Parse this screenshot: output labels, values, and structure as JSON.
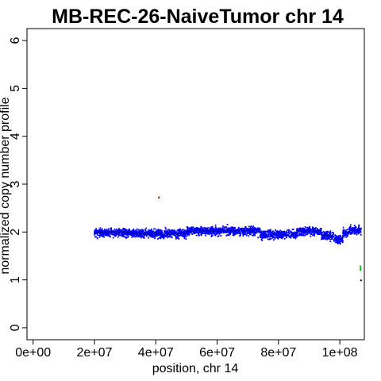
{
  "chart_data": {
    "type": "scatter",
    "title": "MB-REC-26-NaiveTumor chr 14",
    "xlabel": "position, chr 14",
    "ylabel": "normalized copy number profile",
    "xlim": [
      -2000000,
      108000000
    ],
    "ylim": [
      -0.25,
      6.25
    ],
    "x_ticks": [
      0,
      20000000,
      40000000,
      60000000,
      80000000,
      100000000
    ],
    "x_tick_labels": [
      "0e+00",
      "2e+07",
      "4e+07",
      "6e+07",
      "8e+07",
      "1e+08"
    ],
    "y_ticks": [
      0,
      1,
      2,
      3,
      4,
      5,
      6
    ],
    "y_tick_labels": [
      "0",
      "1",
      "2",
      "3",
      "4",
      "5",
      "6"
    ],
    "grid": false,
    "legend": "none",
    "colors": {
      "normal": "#0000ff",
      "gain": "#ffa500",
      "loss": "#00bb00",
      "segment": "#000000"
    },
    "main_band": {
      "x_start": 20000000,
      "x_end": 107000000,
      "mean": 2.0,
      "spread": 0.11,
      "point_count": 2600
    },
    "segments": [
      {
        "x_start": 20000000,
        "x_end": 32000000,
        "y": 1.99
      },
      {
        "x_start": 32000000,
        "x_end": 50000000,
        "y": 1.97
      },
      {
        "x_start": 50000000,
        "x_end": 74000000,
        "y": 2.02
      },
      {
        "x_start": 74000000,
        "x_end": 86000000,
        "y": 1.95
      },
      {
        "x_start": 86000000,
        "x_end": 94000000,
        "y": 2.02
      },
      {
        "x_start": 94000000,
        "x_end": 98000000,
        "y": 1.93
      },
      {
        "x_start": 98000000,
        "x_end": 101000000,
        "y": 1.85
      },
      {
        "x_start": 101000000,
        "x_end": 103000000,
        "y": 1.98
      },
      {
        "x_start": 103000000,
        "x_end": 107000000,
        "y": 2.04
      }
    ],
    "outliers": [
      {
        "x": 41000000,
        "y": 2.72,
        "class": "normal"
      },
      {
        "x": 41200000,
        "y": 2.74,
        "class": "gain"
      },
      {
        "x": 106700000,
        "y": 1.28,
        "class": "loss"
      },
      {
        "x": 106800000,
        "y": 1.24,
        "class": "loss"
      },
      {
        "x": 106750000,
        "y": 1.21,
        "class": "loss"
      },
      {
        "x": 106900000,
        "y": 0.99,
        "class": "segment"
      }
    ]
  }
}
